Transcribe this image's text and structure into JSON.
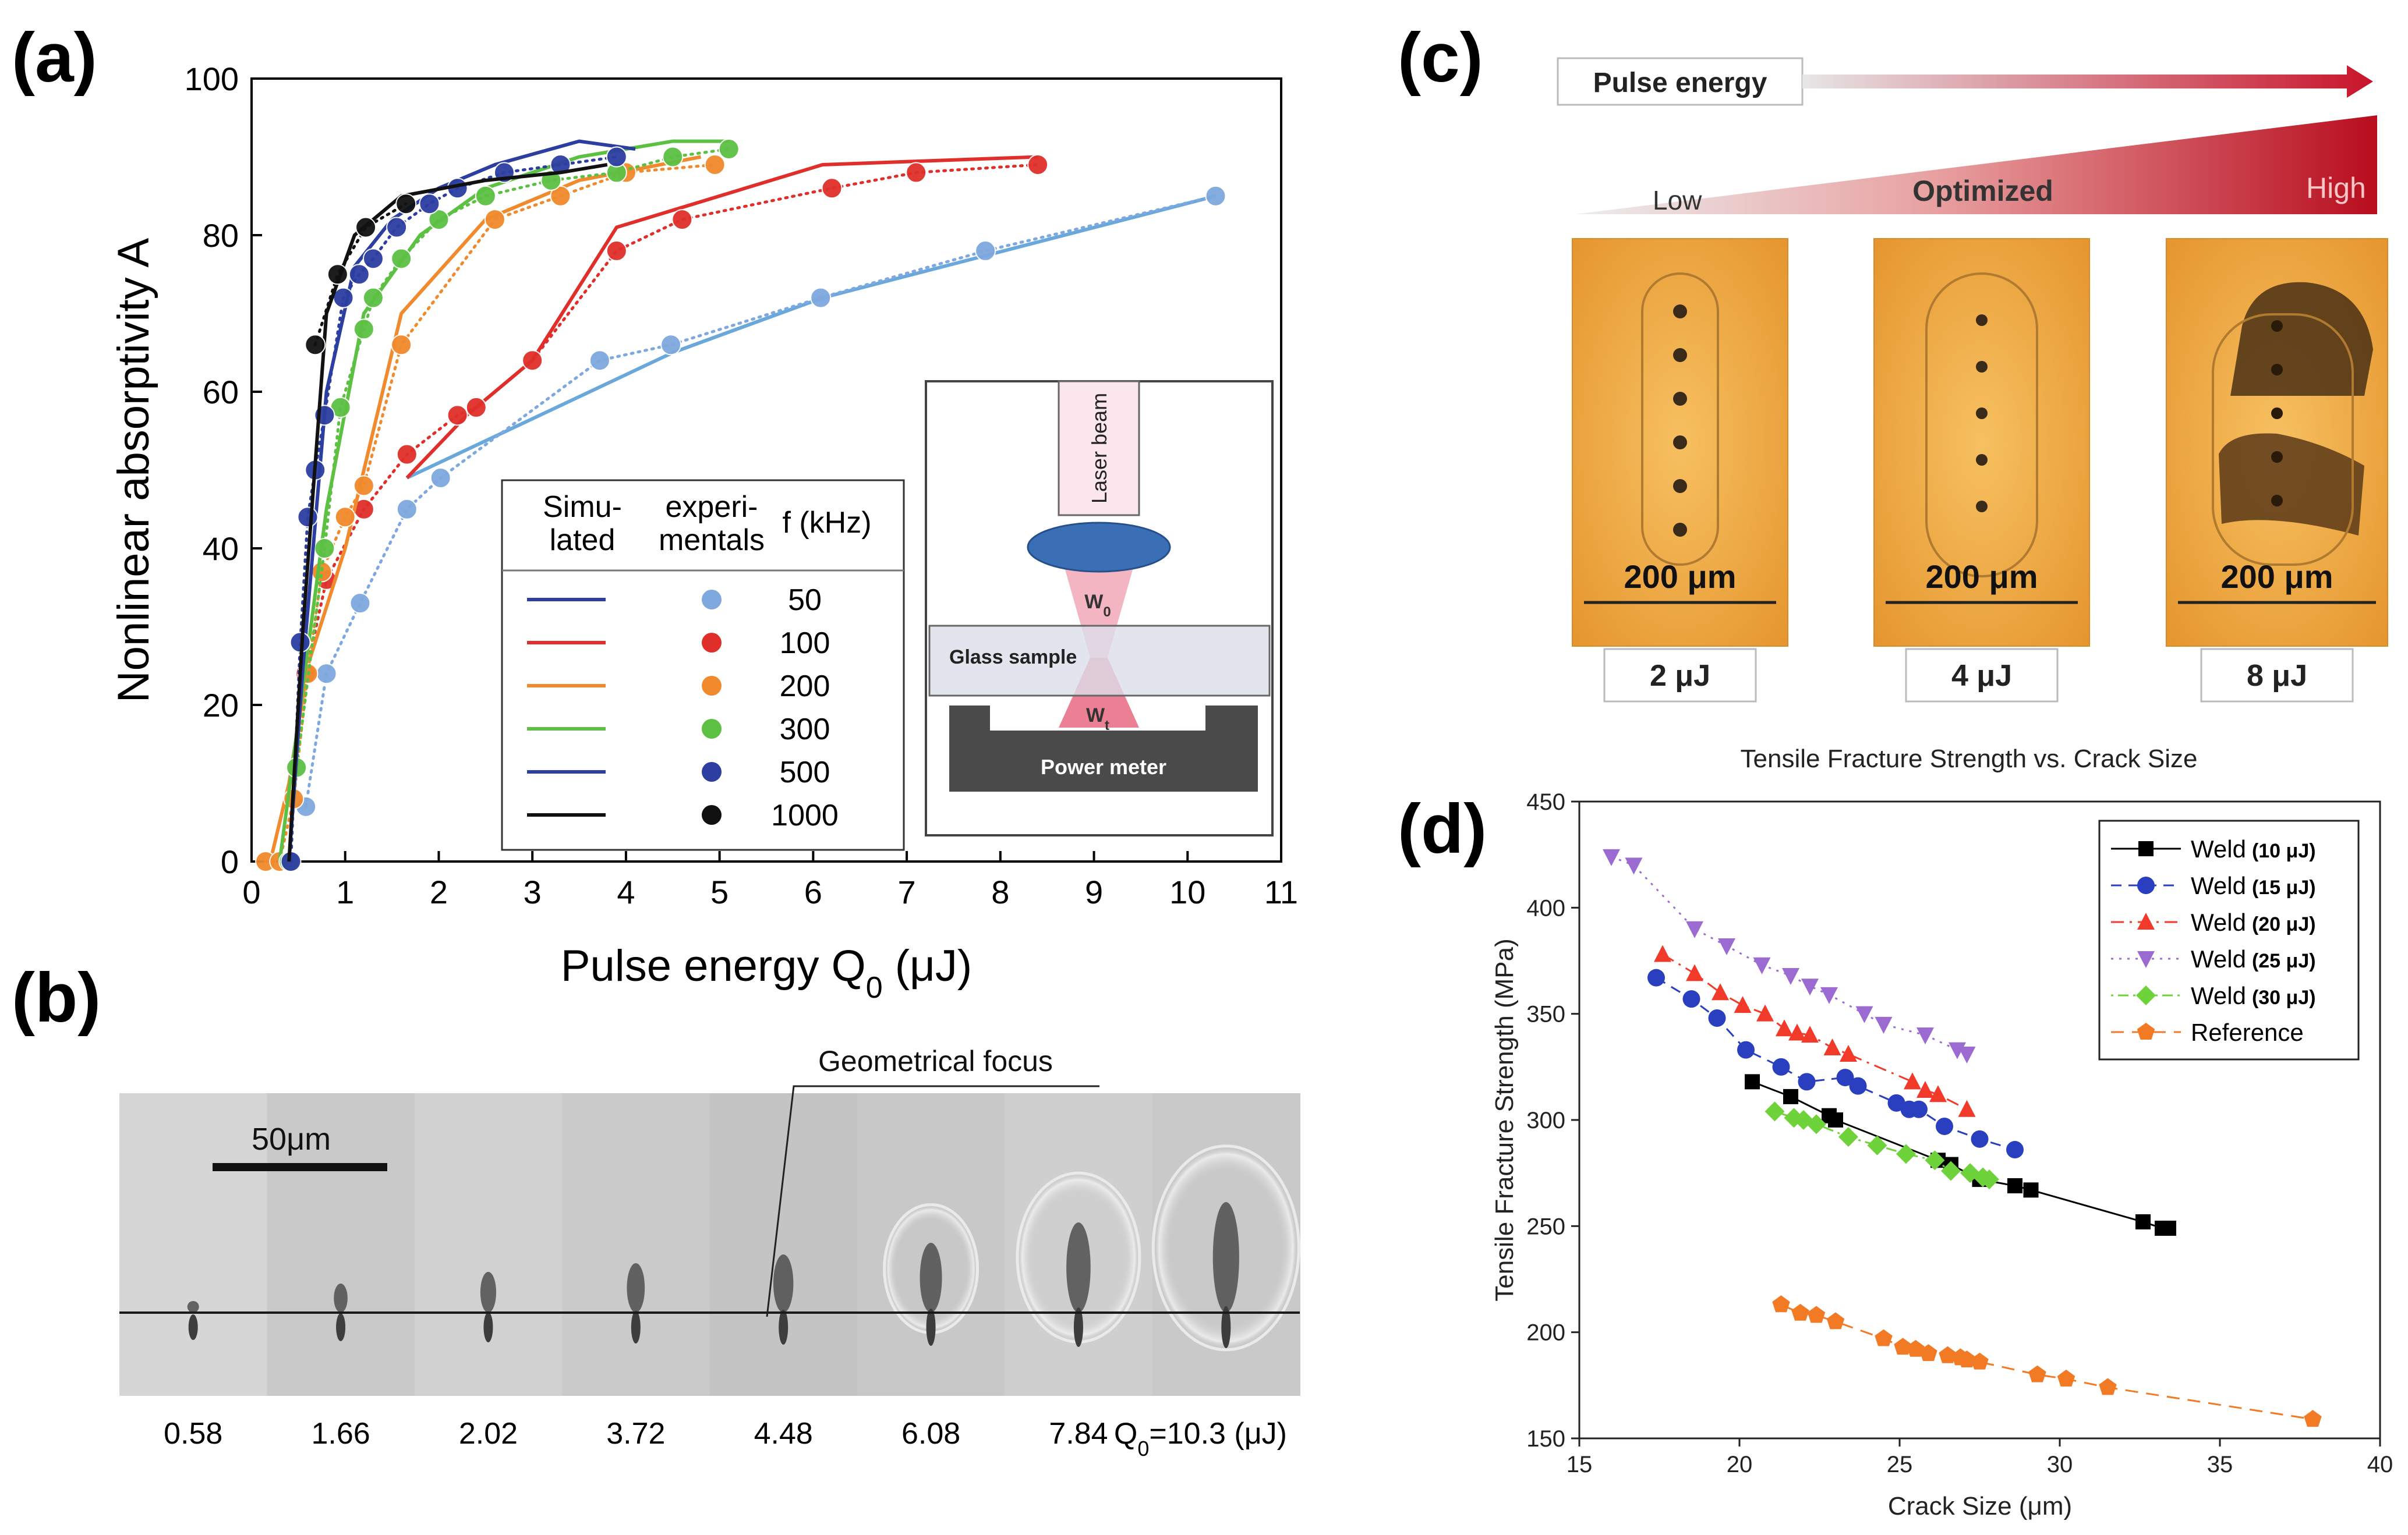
{
  "panels": {
    "a": "(a)",
    "b": "(b)",
    "c": "(c)",
    "d": "(d)"
  },
  "colors": {
    "f50": "#7ea8de",
    "f50line": "#6aa8dc",
    "f100": "#e02f2a",
    "f200": "#f08a2c",
    "f300": "#5cc043",
    "f500": "#2d3ea1",
    "f1000": "#111111",
    "d10": "#000000",
    "d15": "#2a3fbf",
    "d20": "#f23a2a",
    "d25": "#9b6bd1",
    "d30": "#6ed23a",
    "dref": "#f27a24"
  },
  "chart_data": [
    {
      "id": "a",
      "type": "line",
      "title": "",
      "xlabel": "Pulse energy Q",
      "xlabel_sub": "0",
      "xlabel_unit": " (μJ)",
      "ylabel": "Nonlinear absorptivity A",
      "xlim": [
        0,
        11
      ],
      "ylim": [
        0,
        100
      ],
      "xticks": [
        0,
        1,
        2,
        3,
        4,
        5,
        6,
        7,
        8,
        9,
        10,
        11
      ],
      "yticks": [
        0,
        20,
        40,
        60,
        80,
        100
      ],
      "legend": {
        "header_sim": [
          "Simu-",
          "lated"
        ],
        "header_exp": [
          "experi-",
          "mentals"
        ],
        "header_f": "f (kHz)",
        "entries": [
          "50",
          "100",
          "200",
          "300",
          "500",
          "1000"
        ]
      },
      "series": [
        {
          "name": "50",
          "color_key": "f50",
          "sim": [
            [
              1.66,
              49
            ],
            [
              4.5,
              65
            ],
            [
              6.1,
              72
            ],
            [
              10.3,
              85
            ]
          ],
          "exp": [
            [
              0.58,
              7
            ],
            [
              0.8,
              24
            ],
            [
              1.16,
              33
            ],
            [
              1.66,
              45
            ],
            [
              2.02,
              49
            ],
            [
              3.72,
              64
            ],
            [
              4.48,
              66
            ],
            [
              6.08,
              72
            ],
            [
              7.84,
              78
            ],
            [
              10.3,
              85
            ]
          ]
        },
        {
          "name": "100",
          "color_key": "f100",
          "sim": [
            [
              1.66,
              49
            ],
            [
              2.3,
              57
            ],
            [
              3.0,
              64
            ],
            [
              3.9,
              81
            ],
            [
              6.1,
              89
            ],
            [
              8.4,
              90
            ]
          ],
          "exp": [
            [
              0.58,
              24
            ],
            [
              0.8,
              36
            ],
            [
              1.2,
              45
            ],
            [
              1.66,
              52
            ],
            [
              2.2,
              57
            ],
            [
              2.4,
              58
            ],
            [
              3.0,
              64
            ],
            [
              3.9,
              78
            ],
            [
              4.6,
              82
            ],
            [
              6.2,
              86
            ],
            [
              7.1,
              88
            ],
            [
              8.4,
              89
            ]
          ]
        },
        {
          "name": "200",
          "color_key": "f200",
          "sim": [
            [
              0.2,
              0
            ],
            [
              0.4,
              10
            ],
            [
              0.6,
              25
            ],
            [
              1.0,
              40
            ],
            [
              1.6,
              70
            ],
            [
              2.5,
              82
            ],
            [
              3.5,
              87
            ],
            [
              4.8,
              90
            ]
          ],
          "exp": [
            [
              0.15,
              0
            ],
            [
              0.3,
              0
            ],
            [
              0.45,
              8
            ],
            [
              0.6,
              24
            ],
            [
              0.75,
              37
            ],
            [
              1.0,
              44
            ],
            [
              1.2,
              48
            ],
            [
              1.6,
              66
            ],
            [
              2.6,
              82
            ],
            [
              3.3,
              85
            ],
            [
              4.0,
              88
            ],
            [
              4.95,
              89
            ]
          ]
        },
        {
          "name": "300",
          "color_key": "f300",
          "sim": [
            [
              0.3,
              0
            ],
            [
              0.5,
              18
            ],
            [
              0.8,
              45
            ],
            [
              1.2,
              70
            ],
            [
              1.8,
              80
            ],
            [
              2.5,
              86
            ],
            [
              3.5,
              90
            ],
            [
              4.5,
              92
            ],
            [
              5.1,
              92
            ]
          ],
          "exp": [
            [
              0.4,
              0
            ],
            [
              0.48,
              12
            ],
            [
              0.78,
              40
            ],
            [
              0.95,
              58
            ],
            [
              1.2,
              68
            ],
            [
              1.3,
              72
            ],
            [
              1.6,
              77
            ],
            [
              2.0,
              82
            ],
            [
              2.5,
              85
            ],
            [
              3.2,
              87
            ],
            [
              3.9,
              88
            ],
            [
              4.5,
              90
            ],
            [
              5.1,
              91
            ]
          ]
        },
        {
          "name": "500",
          "color_key": "f500",
          "sim": [
            [
              0.4,
              0
            ],
            [
              0.55,
              25
            ],
            [
              0.8,
              60
            ],
            [
              1.1,
              76
            ],
            [
              1.5,
              82
            ],
            [
              2.0,
              86
            ],
            [
              2.6,
              89
            ],
            [
              3.5,
              92
            ],
            [
              4.1,
              91
            ]
          ],
          "exp": [
            [
              0.42,
              0
            ],
            [
              0.52,
              28
            ],
            [
              0.6,
              44
            ],
            [
              0.68,
              50
            ],
            [
              0.78,
              57
            ],
            [
              0.98,
              72
            ],
            [
              1.15,
              75
            ],
            [
              1.3,
              77
            ],
            [
              1.55,
              81
            ],
            [
              1.9,
              84
            ],
            [
              2.2,
              86
            ],
            [
              2.7,
              88
            ],
            [
              3.3,
              89
            ],
            [
              3.9,
              90
            ]
          ]
        },
        {
          "name": "1000",
          "color_key": "f1000",
          "sim": [
            [
              0.4,
              0
            ],
            [
              0.55,
              30
            ],
            [
              0.8,
              70
            ],
            [
              1.1,
              80
            ],
            [
              1.6,
              85
            ],
            [
              2.5,
              87
            ],
            [
              3.3,
              88
            ],
            [
              3.8,
              89
            ]
          ],
          "exp": [
            [
              0.68,
              66
            ],
            [
              0.92,
              75
            ],
            [
              1.22,
              81
            ],
            [
              1.65,
              84
            ]
          ]
        }
      ]
    },
    {
      "id": "d",
      "type": "line",
      "title": "Tensile Fracture Strength vs. Crack Size",
      "xlabel": "Crack Size (μm)",
      "ylabel": "Tensile Fracture Strength (MPa)",
      "xlim": [
        15,
        40
      ],
      "ylim": [
        150,
        450
      ],
      "xticks": [
        15,
        20,
        25,
        30,
        35,
        40
      ],
      "yticks": [
        150,
        200,
        250,
        300,
        350,
        400,
        450
      ],
      "legend": [
        {
          "label": "Weld",
          "energy": "(10 μJ)"
        },
        {
          "label": "Weld",
          "energy": "(15 μJ)"
        },
        {
          "label": "Weld",
          "energy": "(20 μJ)"
        },
        {
          "label": "Weld",
          "energy": "(25 μJ)"
        },
        {
          "label": "Weld",
          "energy": "(30 μJ)"
        },
        {
          "label": "Reference",
          "energy": ""
        }
      ],
      "series": [
        {
          "name": "Weld (10 μJ)",
          "marker": "square",
          "dash": "",
          "color_key": "d10",
          "points": [
            [
              20.4,
              318
            ],
            [
              21.6,
              311
            ],
            [
              22.8,
              302
            ],
            [
              23.0,
              300
            ],
            [
              26.2,
              281
            ],
            [
              26.6,
              279
            ],
            [
              27.5,
              272
            ],
            [
              28.6,
              269
            ],
            [
              29.1,
              267
            ],
            [
              32.6,
              252
            ],
            [
              33.2,
              249
            ],
            [
              33.4,
              249
            ]
          ]
        },
        {
          "name": "Weld (15 μJ)",
          "marker": "circle",
          "dash": "18 12",
          "color_key": "d15",
          "points": [
            [
              17.4,
              367
            ],
            [
              18.5,
              357
            ],
            [
              19.3,
              348
            ],
            [
              20.2,
              333
            ],
            [
              21.3,
              325
            ],
            [
              22.1,
              318
            ],
            [
              23.3,
              320
            ],
            [
              23.7,
              316
            ],
            [
              24.9,
              308
            ],
            [
              25.3,
              305
            ],
            [
              25.6,
              305
            ],
            [
              26.4,
              297
            ],
            [
              27.5,
              291
            ],
            [
              28.6,
              286
            ]
          ]
        },
        {
          "name": "Weld (20 μJ)",
          "marker": "triangle-up",
          "dash": "22 10 4 10",
          "color_key": "d20",
          "points": [
            [
              17.6,
              378
            ],
            [
              18.6,
              369
            ],
            [
              19.4,
              360
            ],
            [
              20.1,
              354
            ],
            [
              20.8,
              350
            ],
            [
              21.4,
              343
            ],
            [
              21.8,
              341
            ],
            [
              22.2,
              340
            ],
            [
              22.9,
              334
            ],
            [
              23.4,
              331
            ],
            [
              25.4,
              318
            ],
            [
              25.8,
              314
            ],
            [
              26.2,
              312
            ],
            [
              27.1,
              305
            ]
          ]
        },
        {
          "name": "Weld (25 μJ)",
          "marker": "triangle-down",
          "dash": "4 10",
          "color_key": "d25",
          "points": [
            [
              16.0,
              424
            ],
            [
              16.7,
              420
            ],
            [
              18.6,
              390
            ],
            [
              19.6,
              382
            ],
            [
              20.7,
              373
            ],
            [
              21.6,
              368
            ],
            [
              22.2,
              363
            ],
            [
              22.8,
              359
            ],
            [
              23.9,
              350
            ],
            [
              24.5,
              345
            ],
            [
              25.8,
              340
            ],
            [
              26.8,
              333
            ],
            [
              27.1,
              331
            ]
          ]
        },
        {
          "name": "Weld (30 μJ)",
          "marker": "diamond",
          "dash": "4 8 18 8",
          "color_key": "d30",
          "points": [
            [
              21.1,
              304
            ],
            [
              21.7,
              301
            ],
            [
              22.0,
              300
            ],
            [
              22.4,
              298
            ],
            [
              23.4,
              292
            ],
            [
              24.3,
              288
            ],
            [
              25.2,
              284
            ],
            [
              26.1,
              281
            ],
            [
              26.6,
              276
            ],
            [
              27.2,
              275
            ],
            [
              27.6,
              273
            ],
            [
              27.8,
              272
            ]
          ]
        },
        {
          "name": "Reference",
          "marker": "pentagon",
          "dash": "22 14",
          "color_key": "dref",
          "points": [
            [
              21.3,
              213
            ],
            [
              21.9,
              209
            ],
            [
              22.4,
              208
            ],
            [
              23.0,
              205
            ],
            [
              24.5,
              197
            ],
            [
              25.1,
              193
            ],
            [
              25.5,
              192
            ],
            [
              25.9,
              190
            ],
            [
              26.5,
              189
            ],
            [
              26.9,
              188
            ],
            [
              27.1,
              187
            ],
            [
              27.5,
              186
            ],
            [
              29.3,
              180
            ],
            [
              30.2,
              178
            ],
            [
              31.5,
              174
            ],
            [
              37.9,
              159
            ]
          ]
        }
      ]
    }
  ],
  "a_inset": {
    "laser": "Laser beam",
    "w0": "W",
    "w0_sub": "0",
    "glass": "Glass sample",
    "wt": "W",
    "wt_sub": "t",
    "meter": "Power meter"
  },
  "b": {
    "scale": "50μm",
    "focus": "Geometrical focus",
    "values": [
      "0.58",
      "1.66",
      "2.02",
      "3.72",
      "4.48",
      "6.08",
      "7.84"
    ],
    "last_prefix": "Q",
    "last_sub": "0",
    "last_suffix": "=10.3 (μJ)"
  },
  "c": {
    "arrow_label": "Pulse energy",
    "low": "Low",
    "optimized": "Optimized",
    "high": "High",
    "scale": "200 μm",
    "energies": [
      "2 μJ",
      "4 μJ",
      "8 μJ"
    ]
  }
}
